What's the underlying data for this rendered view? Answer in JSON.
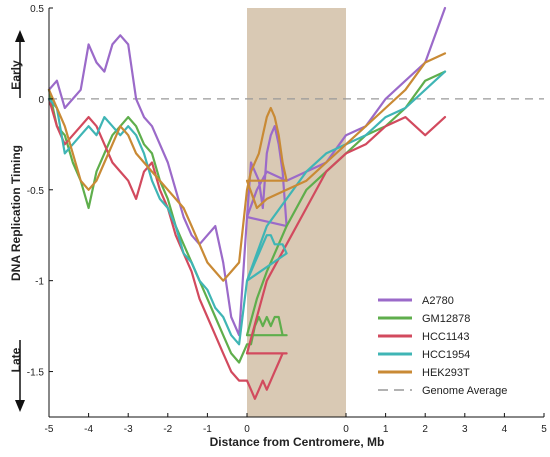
{
  "chart_data": {
    "type": "line",
    "xlabel": "Distance from Centromere, Mb",
    "ylabel": "DNA Replication Timing",
    "annotations": {
      "top": "Early",
      "bottom": "Late"
    },
    "x_tick_labels": [
      "-5",
      "-4",
      "-3",
      "-2",
      "-1",
      "0",
      "0",
      "1",
      "2",
      "3",
      "4",
      "5"
    ],
    "y_ticks": [
      0.5,
      0,
      -0.5,
      -1,
      -1.5
    ],
    "y_tick_labels": [
      "0.5",
      "0",
      "-0.5",
      "-1",
      "-1.5"
    ],
    "ylim": [
      -1.75,
      0.5
    ],
    "centromere_band_color": "#d9c9b4",
    "grid": false,
    "legend_position": "lower-right",
    "reference_line": {
      "name": "Genome Average",
      "y": 0,
      "color": "#999999"
    },
    "left_arm": {
      "x_range": [
        -5,
        0
      ]
    },
    "centromere": {
      "x_range": [
        0,
        1
      ]
    },
    "right_arm": {
      "x_range": [
        0,
        2
      ]
    },
    "series": [
      {
        "name": "A2780",
        "color": "#9b6ac9",
        "points": [
          [
            -5,
            0.05
          ],
          [
            -4.8,
            0.1
          ],
          [
            -4.6,
            -0.05
          ],
          [
            -4.4,
            0.0
          ],
          [
            -4.2,
            0.05
          ],
          [
            -4,
            0.3
          ],
          [
            -3.8,
            0.2
          ],
          [
            -3.6,
            0.15
          ],
          [
            -3.4,
            0.3
          ],
          [
            -3.2,
            0.35
          ],
          [
            -3.0,
            0.3
          ],
          [
            -2.8,
            0.0
          ],
          [
            -2.6,
            -0.1
          ],
          [
            -2.4,
            -0.15
          ],
          [
            -2.2,
            -0.25
          ],
          [
            -2.0,
            -0.35
          ],
          [
            -1.8,
            -0.5
          ],
          [
            -1.6,
            -0.65
          ],
          [
            -1.4,
            -0.75
          ],
          [
            -1.2,
            -0.8
          ],
          [
            -1.0,
            -0.75
          ],
          [
            -0.8,
            -0.7
          ],
          [
            -0.6,
            -0.9
          ],
          [
            -0.4,
            -1.2
          ],
          [
            -0.2,
            -1.3
          ],
          [
            0,
            -0.65
          ],
          [
            0.1,
            -0.35
          ],
          [
            0.2,
            -0.4
          ],
          [
            0.3,
            -0.45
          ],
          [
            0.4,
            -0.6
          ],
          [
            0.5,
            -0.3
          ],
          [
            0.6,
            -0.2
          ],
          [
            0.7,
            -0.15
          ],
          [
            0.8,
            -0.25
          ],
          [
            0.9,
            -0.4
          ],
          [
            1.0,
            -0.7
          ],
          [
            0,
            -0.65
          ],
          [
            0.1,
            -0.5
          ],
          [
            0.2,
            -0.4
          ],
          [
            0.4,
            -0.45
          ],
          [
            0.6,
            -0.4
          ],
          [
            0.8,
            -0.35
          ],
          [
            1.0,
            -0.2
          ],
          [
            1.2,
            -0.15
          ],
          [
            1.4,
            0.0
          ],
          [
            1.6,
            0.1
          ],
          [
            1.8,
            0.2
          ],
          [
            2.0,
            0.5
          ]
        ]
      },
      {
        "name": "GM12878",
        "color": "#5fae4c",
        "points": [
          [
            -5,
            0.05
          ],
          [
            -4.8,
            -0.15
          ],
          [
            -4.6,
            -0.2
          ],
          [
            -4.4,
            -0.35
          ],
          [
            -4.2,
            -0.45
          ],
          [
            -4,
            -0.6
          ],
          [
            -3.8,
            -0.4
          ],
          [
            -3.6,
            -0.3
          ],
          [
            -3.4,
            -0.2
          ],
          [
            -3.2,
            -0.15
          ],
          [
            -3.0,
            -0.1
          ],
          [
            -2.8,
            -0.15
          ],
          [
            -2.6,
            -0.25
          ],
          [
            -2.4,
            -0.3
          ],
          [
            -2.2,
            -0.45
          ],
          [
            -2.0,
            -0.55
          ],
          [
            -1.8,
            -0.7
          ],
          [
            -1.6,
            -0.8
          ],
          [
            -1.4,
            -0.9
          ],
          [
            -1.2,
            -1.0
          ],
          [
            -1.0,
            -1.1
          ],
          [
            -0.8,
            -1.2
          ],
          [
            -0.6,
            -1.3
          ],
          [
            -0.4,
            -1.4
          ],
          [
            -0.2,
            -1.45
          ],
          [
            0,
            -1.35
          ],
          [
            0.1,
            -1.35
          ],
          [
            0.2,
            -1.25
          ],
          [
            0.3,
            -1.2
          ],
          [
            0.4,
            -1.25
          ],
          [
            0.5,
            -1.2
          ],
          [
            0.6,
            -1.25
          ],
          [
            0.7,
            -1.2
          ],
          [
            0.8,
            -1.2
          ],
          [
            0.9,
            -1.3
          ],
          [
            1.0,
            -1.3
          ],
          [
            0,
            -1.3
          ],
          [
            0.1,
            -1.1
          ],
          [
            0.2,
            -0.95
          ],
          [
            0.4,
            -0.7
          ],
          [
            0.6,
            -0.5
          ],
          [
            0.8,
            -0.4
          ],
          [
            1.0,
            -0.3
          ],
          [
            1.2,
            -0.2
          ],
          [
            1.4,
            -0.15
          ],
          [
            1.6,
            -0.05
          ],
          [
            1.8,
            0.1
          ],
          [
            2.0,
            0.15
          ]
        ]
      },
      {
        "name": "HCC1143",
        "color": "#d24a5e",
        "points": [
          [
            -5,
            0.0
          ],
          [
            -4.8,
            -0.15
          ],
          [
            -4.6,
            -0.25
          ],
          [
            -4.4,
            -0.2
          ],
          [
            -4.2,
            -0.15
          ],
          [
            -4,
            -0.1
          ],
          [
            -3.8,
            -0.15
          ],
          [
            -3.6,
            -0.25
          ],
          [
            -3.4,
            -0.35
          ],
          [
            -3.2,
            -0.4
          ],
          [
            -3.0,
            -0.45
          ],
          [
            -2.8,
            -0.55
          ],
          [
            -2.6,
            -0.4
          ],
          [
            -2.4,
            -0.35
          ],
          [
            -2.2,
            -0.5
          ],
          [
            -2.0,
            -0.6
          ],
          [
            -1.8,
            -0.75
          ],
          [
            -1.6,
            -0.85
          ],
          [
            -1.4,
            -0.95
          ],
          [
            -1.2,
            -1.1
          ],
          [
            -1.0,
            -1.2
          ],
          [
            -0.8,
            -1.3
          ],
          [
            -0.6,
            -1.4
          ],
          [
            -0.4,
            -1.5
          ],
          [
            -0.2,
            -1.55
          ],
          [
            0,
            -1.55
          ],
          [
            0.1,
            -1.6
          ],
          [
            0.2,
            -1.65
          ],
          [
            0.3,
            -1.6
          ],
          [
            0.4,
            -1.55
          ],
          [
            0.5,
            -1.6
          ],
          [
            0.6,
            -1.55
          ],
          [
            0.7,
            -1.5
          ],
          [
            0.8,
            -1.45
          ],
          [
            0.9,
            -1.4
          ],
          [
            1.0,
            -1.4
          ],
          [
            0,
            -1.4
          ],
          [
            0.1,
            -1.2
          ],
          [
            0.2,
            -1.0
          ],
          [
            0.4,
            -0.8
          ],
          [
            0.6,
            -0.6
          ],
          [
            0.8,
            -0.4
          ],
          [
            1.0,
            -0.3
          ],
          [
            1.2,
            -0.25
          ],
          [
            1.4,
            -0.15
          ],
          [
            1.6,
            -0.1
          ],
          [
            1.8,
            -0.2
          ],
          [
            2.0,
            -0.1
          ]
        ]
      },
      {
        "name": "HCC1954",
        "color": "#3fb5b5",
        "points": [
          [
            -5,
            0.0
          ],
          [
            -4.8,
            -0.05
          ],
          [
            -4.6,
            -0.3
          ],
          [
            -4.4,
            -0.25
          ],
          [
            -4.2,
            -0.2
          ],
          [
            -4,
            -0.15
          ],
          [
            -3.8,
            -0.2
          ],
          [
            -3.6,
            -0.1
          ],
          [
            -3.4,
            -0.15
          ],
          [
            -3.2,
            -0.2
          ],
          [
            -3.0,
            -0.15
          ],
          [
            -2.8,
            -0.2
          ],
          [
            -2.6,
            -0.3
          ],
          [
            -2.4,
            -0.45
          ],
          [
            -2.2,
            -0.55
          ],
          [
            -2.0,
            -0.6
          ],
          [
            -1.8,
            -0.7
          ],
          [
            -1.6,
            -0.85
          ],
          [
            -1.4,
            -0.9
          ],
          [
            -1.2,
            -1.0
          ],
          [
            -1.0,
            -1.05
          ],
          [
            -0.8,
            -1.15
          ],
          [
            -0.6,
            -1.2
          ],
          [
            -0.4,
            -1.3
          ],
          [
            -0.2,
            -1.35
          ],
          [
            0,
            -1.0
          ],
          [
            0.1,
            -0.95
          ],
          [
            0.2,
            -0.9
          ],
          [
            0.3,
            -0.85
          ],
          [
            0.4,
            -0.8
          ],
          [
            0.5,
            -0.75
          ],
          [
            0.6,
            -0.75
          ],
          [
            0.7,
            -0.8
          ],
          [
            0.8,
            -0.8
          ],
          [
            0.9,
            -0.8
          ],
          [
            1.0,
            -0.85
          ],
          [
            0,
            -1.0
          ],
          [
            0.1,
            -0.85
          ],
          [
            0.2,
            -0.7
          ],
          [
            0.4,
            -0.55
          ],
          [
            0.6,
            -0.4
          ],
          [
            0.8,
            -0.3
          ],
          [
            1.0,
            -0.25
          ],
          [
            1.2,
            -0.2
          ],
          [
            1.4,
            -0.1
          ],
          [
            1.6,
            -0.05
          ],
          [
            1.8,
            0.05
          ],
          [
            2.0,
            0.15
          ]
        ]
      },
      {
        "name": "HEK293T",
        "color": "#c98a35",
        "points": [
          [
            -5,
            0.05
          ],
          [
            -4.8,
            -0.05
          ],
          [
            -4.6,
            -0.15
          ],
          [
            -4.4,
            -0.3
          ],
          [
            -4.2,
            -0.45
          ],
          [
            -4,
            -0.5
          ],
          [
            -3.8,
            -0.45
          ],
          [
            -3.6,
            -0.35
          ],
          [
            -3.4,
            -0.25
          ],
          [
            -3.2,
            -0.15
          ],
          [
            -3.0,
            -0.2
          ],
          [
            -2.8,
            -0.3
          ],
          [
            -2.6,
            -0.35
          ],
          [
            -2.4,
            -0.4
          ],
          [
            -2.2,
            -0.45
          ],
          [
            -2.0,
            -0.5
          ],
          [
            -1.8,
            -0.55
          ],
          [
            -1.6,
            -0.6
          ],
          [
            -1.4,
            -0.7
          ],
          [
            -1.2,
            -0.8
          ],
          [
            -1.0,
            -0.9
          ],
          [
            -0.8,
            -0.95
          ],
          [
            -0.6,
            -1.0
          ],
          [
            -0.4,
            -0.95
          ],
          [
            -0.2,
            -0.9
          ],
          [
            0,
            -0.5
          ],
          [
            0.1,
            -0.4
          ],
          [
            0.2,
            -0.35
          ],
          [
            0.3,
            -0.3
          ],
          [
            0.4,
            -0.2
          ],
          [
            0.5,
            -0.1
          ],
          [
            0.6,
            -0.05
          ],
          [
            0.7,
            -0.1
          ],
          [
            0.8,
            -0.2
          ],
          [
            0.9,
            -0.35
          ],
          [
            1.0,
            -0.45
          ],
          [
            0,
            -0.45
          ],
          [
            0.1,
            -0.6
          ],
          [
            0.2,
            -0.55
          ],
          [
            0.4,
            -0.5
          ],
          [
            0.6,
            -0.45
          ],
          [
            0.8,
            -0.35
          ],
          [
            1.0,
            -0.25
          ],
          [
            1.2,
            -0.15
          ],
          [
            1.4,
            -0.05
          ],
          [
            1.6,
            0.05
          ],
          [
            1.8,
            0.2
          ],
          [
            2.0,
            0.25
          ]
        ]
      }
    ]
  }
}
